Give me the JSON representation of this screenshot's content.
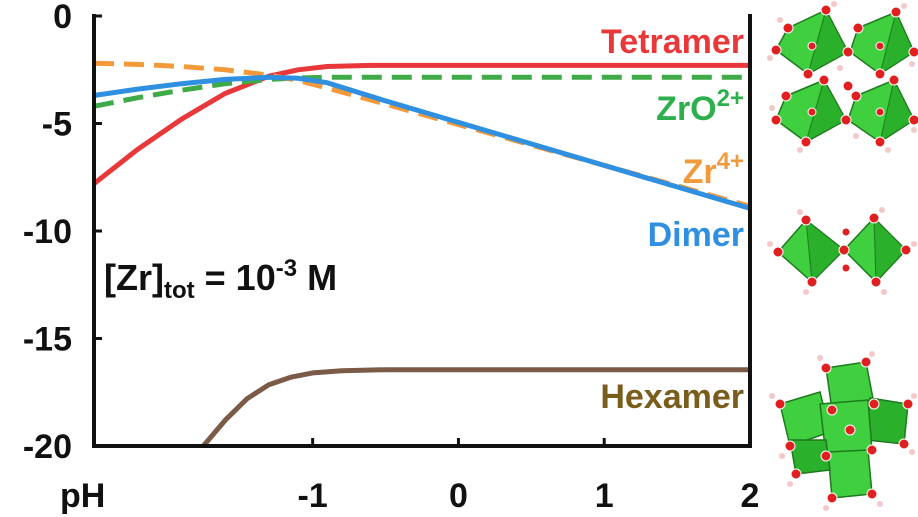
{
  "chart_data": {
    "type": "line",
    "x_axis_label": "pH",
    "xlim": [
      -2.5,
      2
    ],
    "ylim": [
      -20,
      0
    ],
    "x_ticks": [
      "-1",
      "0",
      "1",
      "2"
    ],
    "x_tick_values": [
      -1,
      0,
      1,
      2
    ],
    "y_ticks": [
      "0",
      "-5",
      "-10",
      "-15",
      "-20"
    ],
    "y_tick_values": [
      0,
      -5,
      -10,
      -15,
      -20
    ],
    "annotation": {
      "base": "[Zr]",
      "sub": "tot",
      "mid": " = 10",
      "sup": "-3",
      "end": " M"
    },
    "series": [
      {
        "name": "Tetramer",
        "color": "#e8383a",
        "dash": false,
        "x": [
          -2.5,
          -2.2,
          -1.9,
          -1.6,
          -1.3,
          -1.1,
          -0.9,
          -0.6,
          -0.3,
          0,
          0.5,
          1,
          1.5,
          2
        ],
        "y": [
          -7.8,
          -6.2,
          -4.8,
          -3.6,
          -2.8,
          -2.5,
          -2.35,
          -2.3,
          -2.3,
          -2.3,
          -2.3,
          -2.3,
          -2.3,
          -2.3
        ]
      },
      {
        "name": "ZrO",
        "sup": "2+",
        "color": "#3faa48",
        "dash": true,
        "x": [
          -2.5,
          -2.2,
          -1.9,
          -1.6,
          -1.3,
          -1.1,
          -0.9,
          -0.5,
          0,
          0.5,
          1,
          1.5,
          2
        ],
        "y": [
          -4.2,
          -3.8,
          -3.45,
          -3.15,
          -2.95,
          -2.88,
          -2.85,
          -2.85,
          -2.85,
          -2.85,
          -2.85,
          -2.85,
          -2.85
        ]
      },
      {
        "name": "Zr",
        "sup": "4+",
        "color": "#f29a3a",
        "dash": true,
        "x": [
          -2.5,
          -2.2,
          -1.9,
          -1.6,
          -1.3,
          -1.1,
          -0.9,
          -0.5,
          0,
          0.5,
          1,
          1.5,
          2
        ],
        "y": [
          -2.2,
          -2.25,
          -2.35,
          -2.5,
          -2.75,
          -3.0,
          -3.35,
          -4.1,
          -5.05,
          -6.0,
          -6.95,
          -7.9,
          -8.85
        ]
      },
      {
        "name": "Dimer",
        "color": "#2f8fe0",
        "dash": false,
        "x": [
          -2.5,
          -2.2,
          -1.9,
          -1.6,
          -1.3,
          -1.1,
          -0.9,
          -0.5,
          0,
          0.5,
          1,
          1.5,
          2
        ],
        "y": [
          -3.7,
          -3.4,
          -3.15,
          -2.95,
          -2.85,
          -2.9,
          -3.1,
          -3.95,
          -4.95,
          -5.95,
          -6.95,
          -7.95,
          -8.95
        ]
      },
      {
        "name": "Hexamer",
        "color": "#7b5a47",
        "dash": false,
        "x": [
          -1.75,
          -1.6,
          -1.45,
          -1.3,
          -1.15,
          -1.0,
          -0.8,
          -0.5,
          0,
          1,
          2
        ],
        "y": [
          -20.0,
          -18.8,
          -17.8,
          -17.15,
          -16.8,
          -16.6,
          -16.5,
          -16.45,
          -16.45,
          -16.45,
          -16.45
        ]
      }
    ],
    "labels": {
      "Tetramer": {
        "color": "#e8383a"
      },
      "ZrO": {
        "color": "#2db04b"
      },
      "Zr": {
        "color": "#f29a3a"
      },
      "Dimer": {
        "color": "#2f8fe0"
      },
      "Hexamer": {
        "color": "#7a5c1d"
      }
    }
  },
  "structures": [
    {
      "name": "tetramer-structure"
    },
    {
      "name": "dimer-structure"
    },
    {
      "name": "hexamer-structure"
    }
  ],
  "colors": {
    "octahedron": "#33cc33",
    "octahedron_edge": "#1e7a1e",
    "oxygen": "#e02020",
    "hydrogen": "#f2c8c8"
  }
}
